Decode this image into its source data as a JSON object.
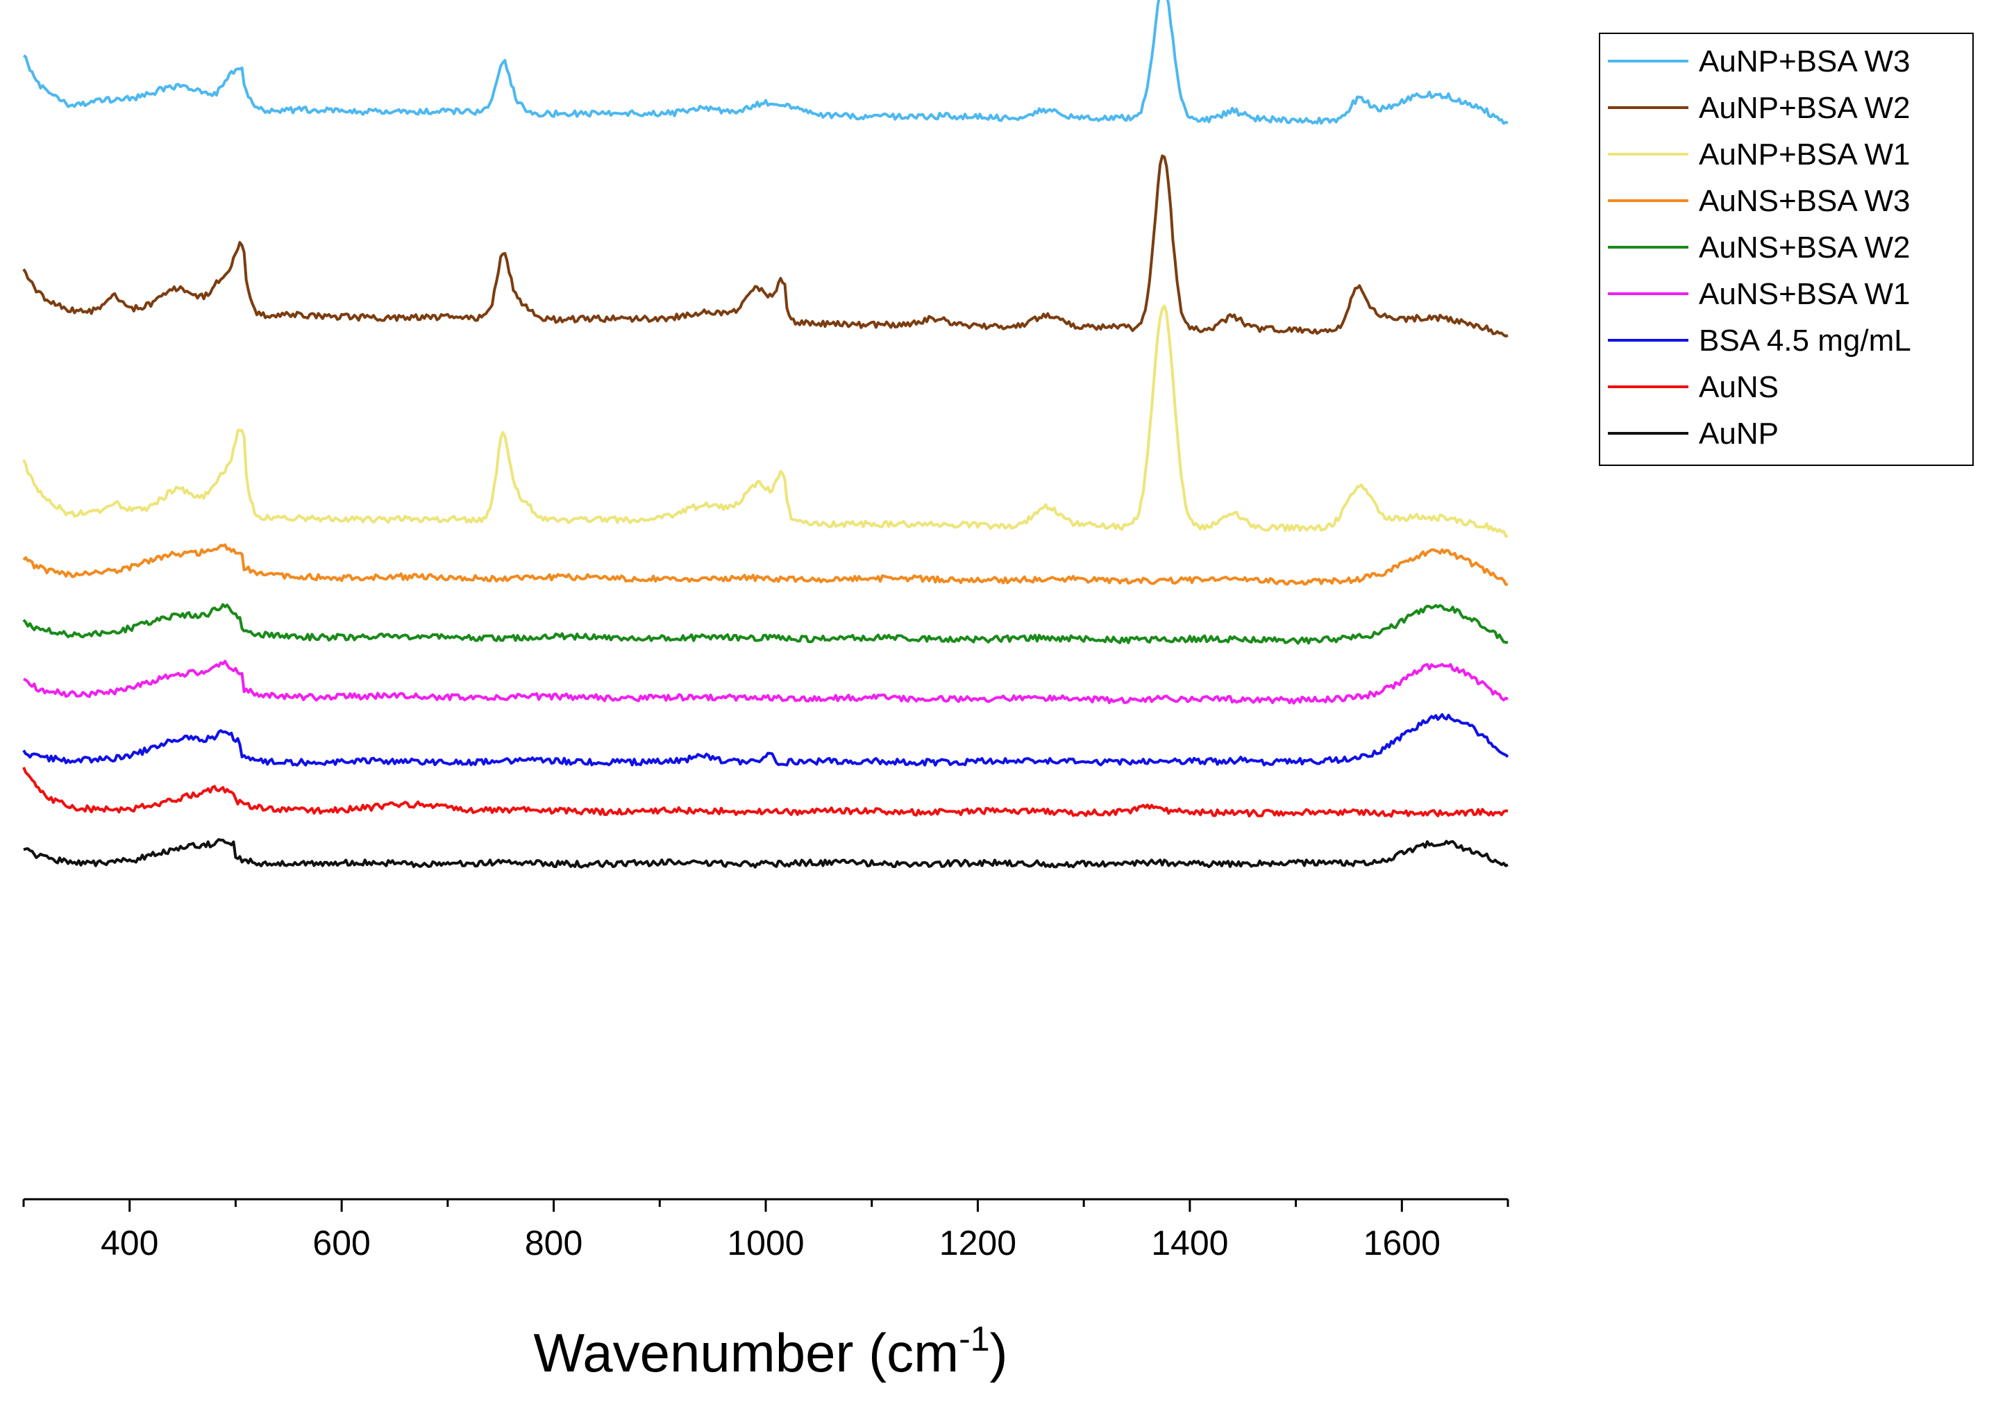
{
  "chart_data": {
    "type": "line",
    "title": "",
    "xlabel": "Wavenumber (cm",
    "xlabel_superscript": "-1",
    "xlabel_close": ")",
    "ylabel": "",
    "xlim": [
      300,
      1700
    ],
    "x_ticks": [
      400,
      600,
      800,
      1000,
      1200,
      1400,
      1600
    ],
    "x_tick_labels": [
      "400",
      "600",
      "800",
      "1000",
      "1200",
      "1400",
      "1600"
    ],
    "minor_x_ticks": [
      300,
      500,
      700,
      900,
      1100,
      1300,
      1500,
      1700
    ],
    "y_ticks_visible": false,
    "grid": false,
    "legend_position": "top-right outside plot",
    "series": [
      {
        "name": "AuNP+BSA W3",
        "color": "#4db8f0",
        "baseline": 9.1,
        "start": [
          [
            300,
            0.35
          ],
          [
            315,
            0.1
          ]
        ],
        "slope": -0.12,
        "features": [
          [
            385,
            25,
            0.06
          ],
          [
            445,
            22,
            0.15
          ],
          [
            500,
            10,
            0.22
          ],
          [
            505,
            3,
            0.05
          ],
          [
            752,
            6,
            0.35
          ],
          [
            760,
            10,
            0.1
          ],
          [
            940,
            15,
            0.06
          ],
          [
            1005,
            20,
            0.1
          ],
          [
            1262,
            12,
            0.07
          ],
          [
            1375,
            9,
            1.1
          ],
          [
            1440,
            10,
            0.07
          ],
          [
            1560,
            9,
            0.15
          ],
          [
            1630,
            38,
            0.22
          ]
        ],
        "edges": [
          [
            507,
            0.18
          ]
        ],
        "cutoff": 1680
      },
      {
        "name": "AuNP+BSA W2",
        "color": "#7b3d10",
        "baseline": 7.4,
        "start": [
          [
            300,
            0.25
          ],
          [
            315,
            0.1
          ]
        ],
        "slope": -0.18,
        "features": [
          [
            385,
            6,
            0.12
          ],
          [
            445,
            15,
            0.15
          ],
          [
            490,
            10,
            0.2
          ],
          [
            505,
            6,
            0.35
          ],
          [
            752,
            6,
            0.45
          ],
          [
            765,
            12,
            0.15
          ],
          [
            940,
            18,
            0.05
          ],
          [
            992,
            10,
            0.2
          ],
          [
            1015,
            5,
            0.22
          ],
          [
            1160,
            10,
            0.05
          ],
          [
            1265,
            12,
            0.1
          ],
          [
            1375,
            8,
            1.45
          ],
          [
            1440,
            9,
            0.1
          ],
          [
            1558,
            8,
            0.32
          ],
          [
            1575,
            12,
            0.08
          ],
          [
            1630,
            38,
            0.12
          ]
        ],
        "edges": [
          [
            509,
            0.3
          ],
          [
            1020,
            0.22
          ]
        ],
        "cutoff": 1680
      },
      {
        "name": "AuNP+BSA W1",
        "color": "#ede57a",
        "baseline": 5.7,
        "start": [
          [
            300,
            0.35
          ],
          [
            315,
            0.1
          ]
        ],
        "slope": -0.12,
        "features": [
          [
            385,
            8,
            0.08
          ],
          [
            445,
            15,
            0.15
          ],
          [
            490,
            10,
            0.2
          ],
          [
            505,
            6,
            0.45
          ],
          [
            752,
            6,
            0.6
          ],
          [
            765,
            12,
            0.2
          ],
          [
            940,
            20,
            0.1
          ],
          [
            992,
            12,
            0.22
          ],
          [
            1015,
            5,
            0.25
          ],
          [
            1265,
            12,
            0.15
          ],
          [
            1375,
            10,
            1.85
          ],
          [
            1440,
            10,
            0.12
          ],
          [
            1560,
            12,
            0.32
          ],
          [
            1625,
            40,
            0.1
          ]
        ],
        "edges": [
          [
            510,
            0.4
          ],
          [
            1020,
            0.25
          ]
        ],
        "cutoff": 1680
      },
      {
        "name": "AuNS+BSA W3",
        "color": "#f28a1f",
        "baseline": 5.2,
        "start": [
          [
            300,
            0.15
          ]
        ],
        "slope": -0.05,
        "features": [
          [
            450,
            35,
            0.16
          ],
          [
            490,
            12,
            0.1
          ],
          [
            1635,
            32,
            0.25
          ]
        ],
        "edges": [
          [
            508,
            0.15
          ]
        ],
        "cutoff": 1680
      },
      {
        "name": "AuNS+BSA W2",
        "color": "#1a8a1a",
        "baseline": 4.7,
        "start": [
          [
            300,
            0.12
          ]
        ],
        "slope": -0.04,
        "features": [
          [
            448,
            33,
            0.15
          ],
          [
            490,
            10,
            0.12
          ],
          [
            1635,
            32,
            0.28
          ]
        ],
        "edges": [
          [
            505,
            0.12
          ]
        ],
        "cutoff": 1680
      },
      {
        "name": "AuNS+BSA W1",
        "color": "#f020f0",
        "baseline": 4.2,
        "start": [
          [
            300,
            0.12
          ]
        ],
        "slope": -0.04,
        "features": [
          [
            450,
            33,
            0.15
          ],
          [
            490,
            10,
            0.12
          ],
          [
            1635,
            32,
            0.3
          ]
        ],
        "edges": [
          [
            508,
            0.17
          ]
        ],
        "cutoff": 1680
      },
      {
        "name": "BSA 4.5 mg/mL",
        "color": "#1010e8",
        "baseline": 3.65,
        "start": [
          [
            300,
            0.07
          ]
        ],
        "slope": 0,
        "features": [
          [
            450,
            30,
            0.15
          ],
          [
            490,
            8,
            0.1
          ],
          [
            940,
            10,
            0.04
          ],
          [
            1003,
            3,
            0.08
          ],
          [
            1450,
            8,
            0.02
          ],
          [
            1638,
            35,
            0.38
          ]
        ],
        "edges": [
          [
            505,
            0.17
          ]
        ],
        "cutoff": 1680
      },
      {
        "name": "AuNS",
        "color": "#f01010",
        "baseline": 3.25,
        "start": [
          [
            300,
            0.23
          ],
          [
            340,
            0.12
          ]
        ],
        "slope": -0.03,
        "features": [
          [
            470,
            30,
            0.1
          ],
          [
            485,
            10,
            0.05
          ],
          [
            670,
            30,
            0.05
          ],
          [
            1360,
            12,
            0.04
          ]
        ],
        "edges": [
          [
            500,
            0.08
          ]
        ],
        "cutoff": 1700
      },
      {
        "name": "AuNP",
        "color": "#111111",
        "baseline": 2.8,
        "start": [
          [
            300,
            0.12
          ]
        ],
        "slope": 0,
        "features": [
          [
            460,
            30,
            0.1
          ],
          [
            490,
            8,
            0.06
          ],
          [
            1635,
            30,
            0.17
          ]
        ],
        "edges": [
          [
            500,
            0.14
          ]
        ],
        "cutoff": 1680
      }
    ]
  }
}
